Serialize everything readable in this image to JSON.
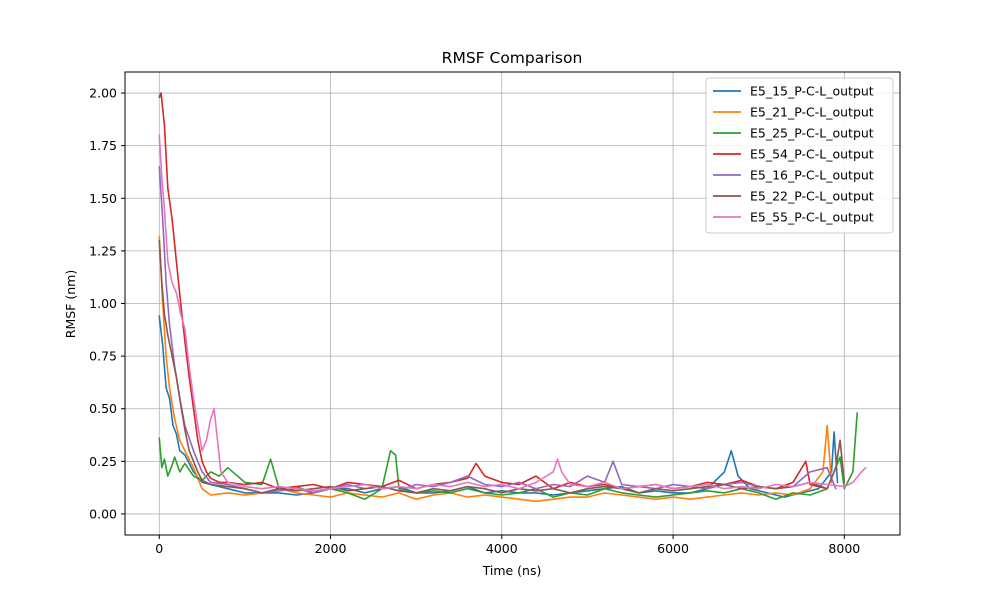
{
  "chart_data": {
    "type": "line",
    "title": "RMSF Comparison",
    "xlabel": "Time (ns)",
    "ylabel": "RMSF (nm)",
    "xlim": [
      -400,
      8650
    ],
    "ylim": [
      -0.1,
      2.1
    ],
    "xticks": [
      0,
      2000,
      4000,
      6000,
      8000
    ],
    "yticks": [
      0.0,
      0.25,
      0.5,
      0.75,
      1.0,
      1.25,
      1.5,
      1.75,
      2.0
    ],
    "xtick_labels": [
      "0",
      "2000",
      "4000",
      "6000",
      "8000"
    ],
    "ytick_labels": [
      "0.00",
      "0.25",
      "0.50",
      "0.75",
      "1.00",
      "1.25",
      "1.50",
      "1.75",
      "2.00"
    ],
    "grid": true,
    "legend_position": "top-right",
    "series": [
      {
        "name": "E5_15_P-C-L_output",
        "color": "#1f77b4",
        "x": [
          0,
          40,
          80,
          120,
          160,
          200,
          240,
          300,
          400,
          500,
          600,
          800,
          1000,
          1200,
          1400,
          1600,
          1800,
          2000,
          2200,
          2400,
          2600,
          2800,
          3000,
          3200,
          3400,
          3600,
          3800,
          4000,
          4200,
          4400,
          4600,
          4800,
          5000,
          5200,
          5400,
          5600,
          5800,
          6000,
          6200,
          6400,
          6600,
          6680,
          6760,
          6900,
          7100,
          7300,
          7500,
          7700,
          7850,
          7880,
          7920
        ],
        "y": [
          0.94,
          0.8,
          0.6,
          0.55,
          0.42,
          0.38,
          0.3,
          0.28,
          0.2,
          0.15,
          0.14,
          0.12,
          0.1,
          0.1,
          0.1,
          0.09,
          0.1,
          0.12,
          0.12,
          0.1,
          0.12,
          0.13,
          0.1,
          0.1,
          0.11,
          0.13,
          0.1,
          0.11,
          0.1,
          0.1,
          0.09,
          0.1,
          0.11,
          0.12,
          0.13,
          0.1,
          0.11,
          0.1,
          0.1,
          0.12,
          0.2,
          0.3,
          0.18,
          0.12,
          0.1,
          0.08,
          0.1,
          0.12,
          0.2,
          0.39,
          0.15
        ]
      },
      {
        "name": "E5_21_P-C-L_output",
        "color": "#ff7f0e",
        "x": [
          0,
          40,
          80,
          120,
          180,
          240,
          300,
          400,
          500,
          600,
          800,
          1000,
          1200,
          1400,
          1600,
          1800,
          2000,
          2200,
          2400,
          2600,
          2800,
          3000,
          3200,
          3400,
          3600,
          3800,
          4000,
          4200,
          4400,
          4600,
          4800,
          5000,
          5200,
          5400,
          5600,
          5800,
          6000,
          6200,
          6400,
          6600,
          6800,
          7000,
          7200,
          7400,
          7600,
          7750,
          7800,
          7850
        ],
        "y": [
          1.32,
          1.0,
          0.75,
          0.6,
          0.45,
          0.35,
          0.3,
          0.22,
          0.12,
          0.09,
          0.1,
          0.09,
          0.1,
          0.12,
          0.1,
          0.09,
          0.08,
          0.1,
          0.09,
          0.08,
          0.1,
          0.07,
          0.09,
          0.1,
          0.08,
          0.09,
          0.08,
          0.07,
          0.06,
          0.07,
          0.08,
          0.08,
          0.1,
          0.09,
          0.08,
          0.07,
          0.08,
          0.07,
          0.08,
          0.09,
          0.1,
          0.09,
          0.1,
          0.09,
          0.12,
          0.2,
          0.42,
          0.15
        ]
      },
      {
        "name": "E5_25_P-C-L_output",
        "color": "#2ca02c",
        "x": [
          0,
          30,
          60,
          100,
          140,
          180,
          240,
          300,
          400,
          500,
          600,
          700,
          800,
          1000,
          1200,
          1300,
          1400,
          1600,
          1800,
          2000,
          2200,
          2400,
          2600,
          2700,
          2760,
          2800,
          3000,
          3200,
          3400,
          3600,
          3800,
          4000,
          4200,
          4400,
          4600,
          4800,
          5000,
          5200,
          5400,
          5600,
          5800,
          6000,
          6200,
          6400,
          6600,
          6800,
          7000,
          7200,
          7400,
          7600,
          7800,
          7950,
          8000,
          8100,
          8150
        ],
        "y": [
          0.36,
          0.22,
          0.26,
          0.18,
          0.22,
          0.27,
          0.2,
          0.24,
          0.18,
          0.16,
          0.2,
          0.18,
          0.22,
          0.15,
          0.14,
          0.26,
          0.12,
          0.13,
          0.1,
          0.12,
          0.1,
          0.07,
          0.12,
          0.3,
          0.28,
          0.12,
          0.1,
          0.11,
          0.1,
          0.12,
          0.1,
          0.09,
          0.1,
          0.12,
          0.08,
          0.1,
          0.09,
          0.12,
          0.1,
          0.09,
          0.08,
          0.09,
          0.1,
          0.11,
          0.1,
          0.12,
          0.1,
          0.07,
          0.1,
          0.09,
          0.12,
          0.27,
          0.12,
          0.2,
          0.48
        ]
      },
      {
        "name": "E5_54_P-C-L_output",
        "color": "#d62728",
        "x": [
          0,
          20,
          60,
          100,
          150,
          200,
          250,
          300,
          350,
          400,
          450,
          500,
          550,
          600,
          700,
          800,
          1000,
          1200,
          1400,
          1600,
          1800,
          2000,
          2200,
          2400,
          2600,
          2800,
          3000,
          3200,
          3400,
          3600,
          3700,
          3800,
          4000,
          4200,
          4400,
          4600,
          4800,
          5000,
          5200,
          5400,
          5600,
          5800,
          6000,
          6200,
          6400,
          6600,
          6800,
          7000,
          7200,
          7400,
          7550,
          7600,
          7800
        ],
        "y": [
          1.98,
          2.0,
          1.85,
          1.55,
          1.4,
          1.2,
          1.0,
          0.82,
          0.65,
          0.5,
          0.35,
          0.25,
          0.2,
          0.17,
          0.15,
          0.15,
          0.14,
          0.15,
          0.12,
          0.13,
          0.14,
          0.12,
          0.15,
          0.14,
          0.13,
          0.16,
          0.12,
          0.14,
          0.15,
          0.17,
          0.24,
          0.18,
          0.15,
          0.14,
          0.18,
          0.12,
          0.15,
          0.13,
          0.14,
          0.12,
          0.13,
          0.14,
          0.12,
          0.13,
          0.15,
          0.14,
          0.16,
          0.13,
          0.12,
          0.15,
          0.25,
          0.14,
          0.12
        ]
      },
      {
        "name": "E5_16_P-C-L_output",
        "color": "#9467bd",
        "x": [
          0,
          40,
          80,
          120,
          180,
          240,
          300,
          400,
          500,
          600,
          800,
          1000,
          1200,
          1400,
          1600,
          1800,
          2000,
          2200,
          2400,
          2600,
          2800,
          3000,
          3200,
          3400,
          3600,
          3800,
          4000,
          4200,
          4400,
          4600,
          4800,
          5000,
          5200,
          5300,
          5400,
          5600,
          5800,
          6000,
          6200,
          6400,
          6600,
          6800,
          7000,
          7200,
          7400,
          7600,
          7800,
          7900
        ],
        "y": [
          1.65,
          1.4,
          1.1,
          0.9,
          0.7,
          0.55,
          0.42,
          0.3,
          0.2,
          0.15,
          0.14,
          0.12,
          0.1,
          0.11,
          0.12,
          0.1,
          0.12,
          0.14,
          0.12,
          0.13,
          0.11,
          0.14,
          0.13,
          0.15,
          0.18,
          0.14,
          0.13,
          0.15,
          0.12,
          0.14,
          0.13,
          0.18,
          0.15,
          0.25,
          0.14,
          0.13,
          0.12,
          0.14,
          0.13,
          0.12,
          0.14,
          0.15,
          0.13,
          0.12,
          0.13,
          0.2,
          0.22,
          0.12
        ]
      },
      {
        "name": "E5_22_P-C-L_output",
        "color": "#8c564b",
        "x": [
          0,
          30,
          60,
          100,
          150,
          200,
          250,
          300,
          350,
          400,
          450,
          500,
          600,
          800,
          1000,
          1200,
          1400,
          1600,
          1800,
          2000,
          2200,
          2400,
          2600,
          2800,
          3000,
          3200,
          3400,
          3600,
          3800,
          4000,
          4200,
          4400,
          4600,
          4800,
          5000,
          5200,
          5400,
          5600,
          5800,
          6000,
          6200,
          6400,
          6600,
          6800,
          7000,
          7200,
          7400,
          7600,
          7800,
          7900,
          7950,
          8000
        ],
        "y": [
          1.3,
          1.1,
          0.95,
          0.85,
          0.75,
          0.65,
          0.52,
          0.4,
          0.3,
          0.25,
          0.2,
          0.16,
          0.14,
          0.13,
          0.12,
          0.1,
          0.12,
          0.11,
          0.12,
          0.13,
          0.11,
          0.12,
          0.13,
          0.11,
          0.1,
          0.12,
          0.11,
          0.13,
          0.12,
          0.1,
          0.12,
          0.11,
          0.12,
          0.1,
          0.12,
          0.13,
          0.12,
          0.1,
          0.12,
          0.11,
          0.12,
          0.13,
          0.14,
          0.12,
          0.13,
          0.12,
          0.13,
          0.15,
          0.12,
          0.22,
          0.35,
          0.15
        ]
      },
      {
        "name": "E5_55_P-C-L_output",
        "color": "#e377c2",
        "x": [
          0,
          30,
          60,
          100,
          150,
          200,
          250,
          300,
          350,
          400,
          450,
          500,
          550,
          600,
          640,
          680,
          720,
          800,
          1000,
          1200,
          1400,
          1600,
          1800,
          2000,
          2200,
          2400,
          2600,
          2800,
          3000,
          3200,
          3400,
          3600,
          3800,
          4000,
          4200,
          4400,
          4600,
          4650,
          4700,
          4800,
          5000,
          5200,
          5400,
          5600,
          5800,
          6000,
          6200,
          6400,
          6600,
          6800,
          7000,
          7200,
          7400,
          7600,
          7800,
          8000,
          8100,
          8200,
          8250
        ],
        "y": [
          1.8,
          1.6,
          1.45,
          1.2,
          1.1,
          1.05,
          0.95,
          0.88,
          0.7,
          0.55,
          0.42,
          0.3,
          0.35,
          0.45,
          0.5,
          0.35,
          0.2,
          0.15,
          0.13,
          0.12,
          0.13,
          0.12,
          0.11,
          0.12,
          0.13,
          0.14,
          0.12,
          0.13,
          0.12,
          0.14,
          0.13,
          0.15,
          0.13,
          0.14,
          0.12,
          0.15,
          0.2,
          0.26,
          0.2,
          0.14,
          0.13,
          0.15,
          0.12,
          0.13,
          0.14,
          0.12,
          0.13,
          0.14,
          0.12,
          0.13,
          0.12,
          0.14,
          0.13,
          0.15,
          0.14,
          0.13,
          0.15,
          0.2,
          0.22
        ]
      }
    ]
  }
}
